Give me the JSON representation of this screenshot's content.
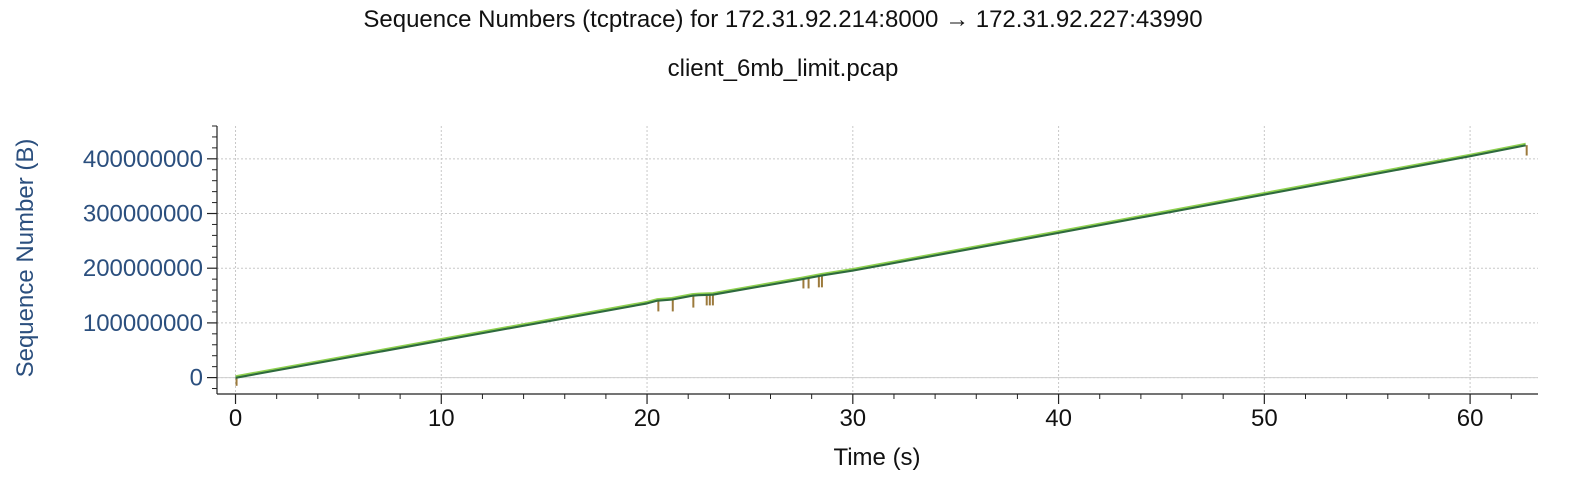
{
  "chart_data": {
    "type": "line",
    "title": "Sequence Numbers (tcptrace) for 172.31.92.214:8000 → 172.31.92.227:43990",
    "subtitle": "client_6mb_limit.pcap",
    "xlabel": "Time (s)",
    "ylabel": "Sequence Number (B)",
    "xlim": [
      -0.9,
      63.3
    ],
    "ylim": [
      -30000000,
      460000000
    ],
    "xticks": [
      0,
      10,
      20,
      30,
      40,
      50,
      60
    ],
    "yticks": [
      0,
      100000000,
      200000000,
      300000000,
      400000000
    ],
    "xtick_labels": [
      "0",
      "10",
      "20",
      "30",
      "40",
      "50",
      "60"
    ],
    "ytick_labels": [
      "0",
      "100000000",
      "200000000",
      "300000000",
      "400000000"
    ],
    "grid": true,
    "colors": {
      "sequence": "#2e6a3e",
      "receive_window": "#8fd14f",
      "sack": "#9c7a3c",
      "y_axis_text": "#2b4f7e",
      "grid": "#c8c8c8"
    },
    "series": [
      {
        "x": [
          0,
          10,
          20,
          20.5,
          21.2,
          22.2,
          22.5,
          23.2,
          27.5,
          28.5,
          30,
          40,
          50,
          60,
          62.7
        ],
        "y": [
          0,
          68000000,
          136000000,
          141000000,
          143000000,
          150000000,
          151000000,
          152000000,
          180000000,
          187000000,
          196000000,
          265000000,
          335000000,
          405000000,
          425000000
        ]
      },
      {
        "x": [
          0,
          10,
          20,
          20.5,
          21.2,
          22.2,
          22.5,
          23.2,
          27.5,
          28.5,
          30,
          40,
          50,
          60,
          62.7
        ],
        "y": [
          3000000,
          71000000,
          139000000,
          144000000,
          146000000,
          153000000,
          154000000,
          155000000,
          183000000,
          190000000,
          199000000,
          268000000,
          338000000,
          408000000,
          428000000
        ]
      }
    ],
    "sack_marks": [
      {
        "x": 0.05,
        "y_top": 0,
        "y_bottom": -15000000
      },
      {
        "x": 20.55,
        "y_top": 141000000,
        "y_bottom": 121000000
      },
      {
        "x": 21.25,
        "y_top": 143000000,
        "y_bottom": 121000000
      },
      {
        "x": 22.25,
        "y_top": 150000000,
        "y_bottom": 128000000
      },
      {
        "x": 22.9,
        "y_top": 151000000,
        "y_bottom": 132000000
      },
      {
        "x": 23.05,
        "y_top": 151500000,
        "y_bottom": 132000000
      },
      {
        "x": 23.2,
        "y_top": 152000000,
        "y_bottom": 132000000
      },
      {
        "x": 27.6,
        "y_top": 180000000,
        "y_bottom": 163000000
      },
      {
        "x": 27.85,
        "y_top": 181500000,
        "y_bottom": 163000000
      },
      {
        "x": 28.35,
        "y_top": 185500000,
        "y_bottom": 165000000
      },
      {
        "x": 28.5,
        "y_top": 186500000,
        "y_bottom": 165000000
      },
      {
        "x": 62.75,
        "y_top": 425000000,
        "y_bottom": 406000000
      }
    ]
  }
}
